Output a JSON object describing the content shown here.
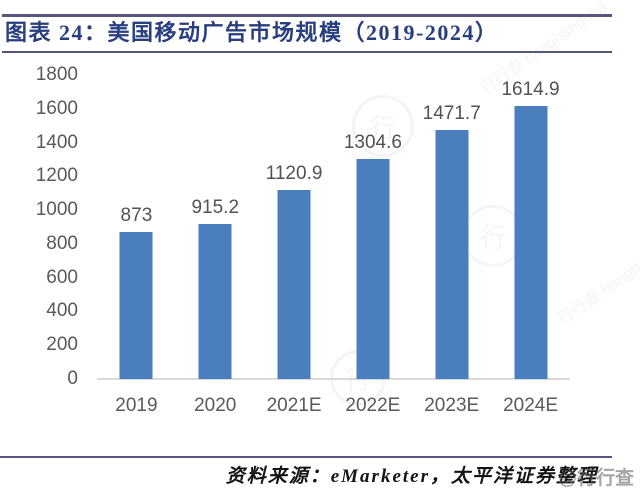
{
  "header": {
    "title": "图表 24：美国移动广告市场规模（2019-2024）"
  },
  "chart_data": {
    "type": "bar",
    "title": "美国移动广告市场规模（2019-2024）",
    "categories": [
      "2019",
      "2020",
      "2021E",
      "2022E",
      "2023E",
      "2024E"
    ],
    "values": [
      873,
      915.2,
      1120.9,
      1304.6,
      1471.7,
      1614.9
    ],
    "data_labels": [
      "873",
      "915.2",
      "1120.9",
      "1304.6",
      "1471.7",
      "1614.9"
    ],
    "xlabel": "",
    "ylabel": "",
    "ylim": [
      0,
      1800
    ],
    "yticks": [
      0,
      200,
      400,
      600,
      800,
      1000,
      1200,
      1400,
      1600,
      1800
    ],
    "grid": false,
    "legend_position": "none",
    "bar_color": "#4a7ebc",
    "axis_text_color": "#595959",
    "axis_line_color": "#d9d9d9"
  },
  "footer": {
    "source_text": "资料来源：eMarketer，太平洋证券整理"
  },
  "watermark": {
    "name": "行行查",
    "latin": "hanghangcha",
    "diagonal_text": "行行查 hanghangcha",
    "footer_badge": "@行行查",
    "glyph": "行"
  },
  "colors": {
    "accent_rule": "#55557e",
    "title_text": "#283e7f",
    "bar": "#4a7ebc",
    "axis_text": "#595959",
    "axis_line": "#d9d9d9",
    "data_label_text": "#525252"
  }
}
